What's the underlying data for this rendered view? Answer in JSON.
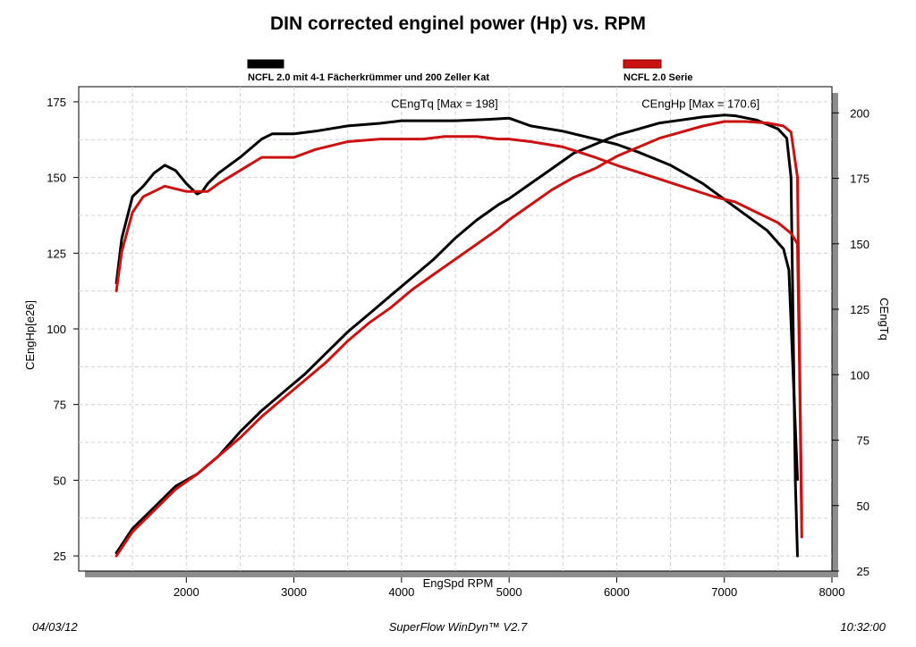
{
  "chart_data": {
    "type": "line",
    "title": "DIN corrected enginel power (Hp) vs. RPM",
    "xlabel": "EngSpd  RPM",
    "ylabel_left": "CEngHp[e26]",
    "ylabel_right": "CEngTq",
    "xlim": [
      1000,
      8000
    ],
    "ylim_left": [
      20,
      180
    ],
    "ylim_right": [
      25,
      210
    ],
    "x_ticks": [
      "2000",
      "3000",
      "4000",
      "5000",
      "6000",
      "7000",
      "8000"
    ],
    "y_left_ticks": [
      "25",
      "50",
      "75",
      "100",
      "125",
      "150",
      "175"
    ],
    "y_right_ticks": [
      "25",
      "50",
      "75",
      "100",
      "125",
      "150",
      "175",
      "200"
    ],
    "grid": true,
    "legend": [
      {
        "label": "NCFL 2.0 mit 4-1 Fächerkrümmer und 200 Zeller Kat",
        "color": "#000000"
      },
      {
        "label": "NCFL 2.0 Serie",
        "color": "#cc1111"
      }
    ],
    "annotations": [
      {
        "text": "CEngTq [Max = 198]",
        "x": 4400,
        "y": 173
      },
      {
        "text": "CEngHp [Max = 170.6]",
        "x": 6780,
        "y": 173
      }
    ],
    "series": [
      {
        "name": "NCFL 2.0 mit 4-1 Fächerkrümmer und 200 Zeller Kat",
        "quantity": "CEngHp",
        "axis": "left",
        "color": "#000000",
        "x": [
          1350,
          1500,
          1700,
          1900,
          2100,
          2300,
          2500,
          2700,
          2900,
          3100,
          3300,
          3500,
          3700,
          3900,
          4100,
          4300,
          4500,
          4700,
          4900,
          5000,
          5200,
          5400,
          5600,
          5800,
          6000,
          6200,
          6400,
          6600,
          6800,
          7000,
          7100,
          7300,
          7500,
          7580,
          7620,
          7640,
          7660,
          7680
        ],
        "y": [
          26,
          34,
          41,
          48,
          52,
          58,
          66,
          73,
          79,
          85,
          92,
          99,
          105,
          111,
          117,
          123,
          130,
          136,
          141,
          143,
          148,
          153,
          158,
          161,
          164,
          166,
          168,
          169,
          170,
          170.6,
          170.4,
          169,
          166,
          163,
          150,
          100,
          50,
          25
        ]
      },
      {
        "name": "NCFL 2.0 mit 4-1 Fächerkrümmer und 200 Zeller Kat",
        "quantity": "CEngTq",
        "axis": "right",
        "color": "#000000",
        "x": [
          1350,
          1400,
          1500,
          1600,
          1700,
          1800,
          1900,
          2000,
          2100,
          2150,
          2200,
          2300,
          2500,
          2700,
          2800,
          3000,
          3200,
          3500,
          3800,
          4000,
          4200,
          4500,
          4800,
          5000,
          5200,
          5500,
          5800,
          6000,
          6200,
          6500,
          6800,
          7000,
          7200,
          7400,
          7550,
          7600,
          7640,
          7680
        ],
        "y": [
          135,
          152,
          168,
          172,
          177,
          180,
          178,
          173,
          169,
          170,
          173,
          177,
          183,
          190,
          192,
          192,
          193,
          195,
          196,
          197,
          197,
          197,
          197.5,
          198,
          195,
          193,
          190,
          188,
          185,
          180,
          173,
          167,
          161,
          155,
          148,
          140,
          100,
          60
        ]
      },
      {
        "name": "NCFL 2.0 Serie",
        "quantity": "CEngHp",
        "axis": "left",
        "color": "#cc1111",
        "x": [
          1350,
          1500,
          1700,
          1900,
          2100,
          2300,
          2500,
          2700,
          2900,
          3100,
          3300,
          3500,
          3700,
          3900,
          4100,
          4300,
          4500,
          4700,
          4900,
          5000,
          5200,
          5400,
          5600,
          5800,
          6000,
          6200,
          6400,
          6600,
          6800,
          7000,
          7200,
          7400,
          7550,
          7620,
          7680,
          7700,
          7720
        ],
        "y": [
          25,
          33,
          40,
          47,
          52,
          58,
          64,
          71,
          77,
          83,
          89,
          96,
          102,
          107,
          113,
          118,
          123,
          128,
          133,
          136,
          141,
          146,
          150,
          153,
          157,
          160,
          163,
          165,
          167,
          168.5,
          168.5,
          168,
          167,
          165,
          150,
          90,
          37
        ]
      },
      {
        "name": "NCFL 2.0 Serie",
        "quantity": "CEngTq",
        "axis": "right",
        "color": "#cc1111",
        "x": [
          1350,
          1400,
          1500,
          1600,
          1700,
          1800,
          1900,
          2000,
          2100,
          2200,
          2300,
          2500,
          2700,
          2800,
          3000,
          3200,
          3500,
          3800,
          4000,
          4200,
          4400,
          4700,
          4900,
          5000,
          5200,
          5500,
          5800,
          6000,
          6300,
          6600,
          6900,
          7100,
          7300,
          7500,
          7620,
          7680,
          7700,
          7720
        ],
        "y": [
          132,
          147,
          162,
          168,
          170,
          172,
          171,
          170,
          170,
          170,
          173,
          178,
          183,
          183,
          183,
          186,
          189,
          190,
          190,
          190,
          191,
          191,
          190,
          190,
          189,
          187,
          183,
          180,
          176,
          172,
          168,
          166,
          162,
          158,
          154,
          150,
          100,
          38
        ]
      }
    ]
  },
  "footer": {
    "date": "04/03/12",
    "software": "SuperFlow WinDyn™ V2.7",
    "time": "10:32:00"
  }
}
